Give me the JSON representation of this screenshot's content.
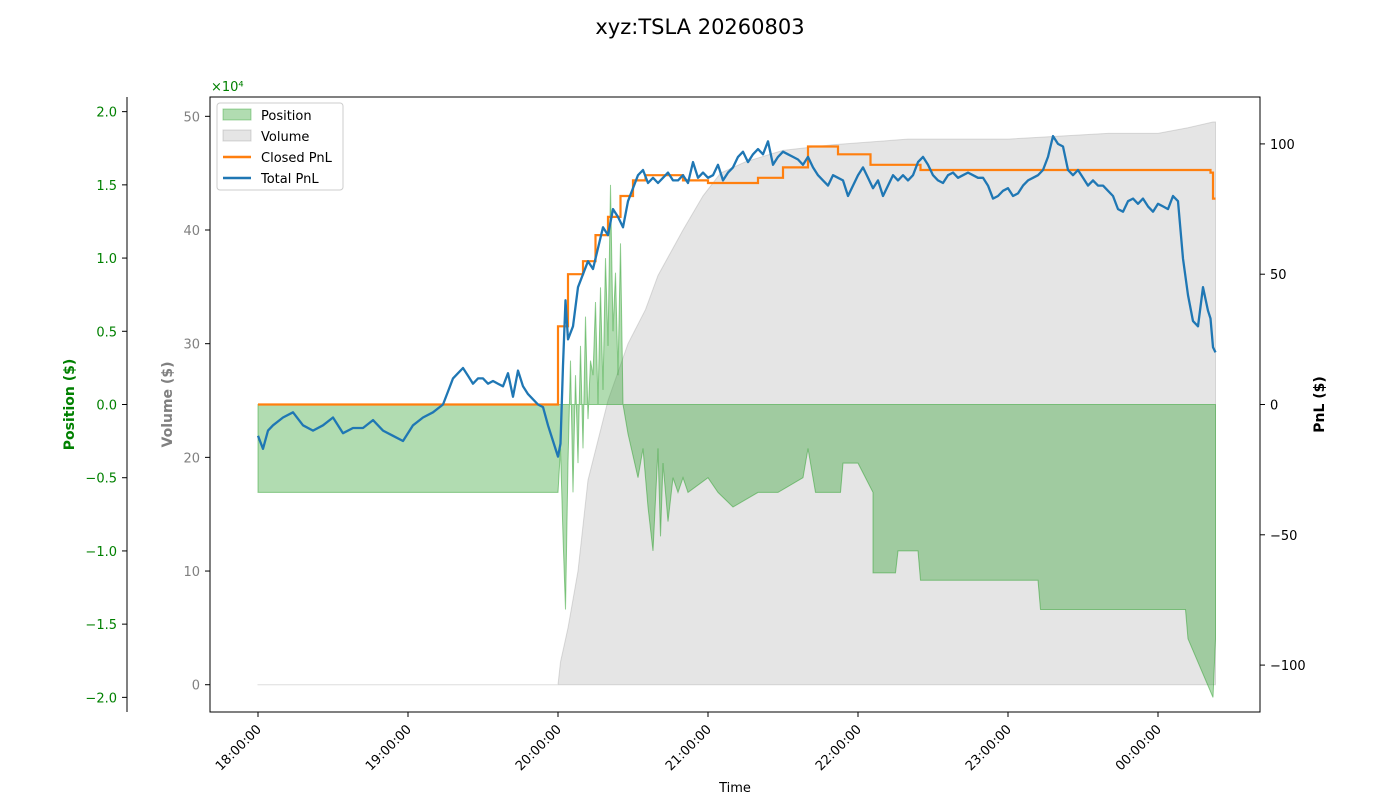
{
  "title": "xyz:TSLA 20260803",
  "colors": {
    "position": "#2ca02c",
    "volume": "#9e9e9e",
    "closed_pnl": "#ff7f0e",
    "total_pnl": "#1f77b4",
    "position_axis": "#008000",
    "volume_axis": "#808080"
  },
  "chart_data": {
    "type": "line",
    "title": "xyz:TSLA 20260803",
    "xlabel": "Time",
    "x_ticks": [
      "18:00:00",
      "19:00:00",
      "20:00:00",
      "21:00:00",
      "22:00:00",
      "23:00:00",
      "00:00:00"
    ],
    "axes": {
      "position": {
        "label": "Position ($)",
        "ylim": [
          -2.1,
          2.1
        ],
        "ticks": [
          "−2.0",
          "−1.5",
          "−1.0",
          "−0.5",
          "0.0",
          "0.5",
          "1.0",
          "1.5",
          "2.0"
        ],
        "tick_values": [
          -2.0,
          -1.5,
          -1.0,
          -0.5,
          0.0,
          0.5,
          1.0,
          1.5,
          2.0
        ],
        "multiplier": "×10⁴"
      },
      "volume": {
        "label": "Volume ($)",
        "ylim": [
          -2.4,
          51.7
        ],
        "ticks": [
          "0",
          "10",
          "20",
          "30",
          "40",
          "50"
        ],
        "tick_values": [
          0,
          10,
          20,
          30,
          40,
          50
        ]
      },
      "pnl": {
        "label": "PnL ($)",
        "ylim": [
          -118,
          118
        ],
        "ticks": [
          "−100",
          "−50",
          "0",
          "50",
          "100"
        ],
        "tick_values": [
          -100,
          -50,
          0,
          50,
          100
        ]
      }
    },
    "legend": {
      "placement": "upper-left",
      "entries": [
        "Position",
        "Volume",
        "Closed PnL",
        "Total PnL"
      ]
    },
    "series": [
      {
        "name": "Position",
        "kind": "area",
        "axis": "position",
        "points": [
          [
            0,
            -0.6
          ],
          [
            120,
            -0.6
          ],
          [
            121,
            -0.3
          ],
          [
            122,
            -0.9
          ],
          [
            123,
            -1.4
          ],
          [
            124,
            -0.4
          ],
          [
            125,
            0.3
          ],
          [
            126,
            -0.6
          ],
          [
            127,
            0.2
          ],
          [
            128,
            -0.4
          ],
          [
            129,
            0.4
          ],
          [
            130,
            -0.3
          ],
          [
            131,
            0.6
          ],
          [
            132,
            -0.1
          ],
          [
            133,
            0.3
          ],
          [
            134,
            0.2
          ],
          [
            135,
            0.7
          ],
          [
            136,
            0.0
          ],
          [
            137,
            0.8
          ],
          [
            138,
            0.1
          ],
          [
            139,
            1.0
          ],
          [
            140,
            0.4
          ],
          [
            141,
            1.5
          ],
          [
            142,
            0.5
          ],
          [
            143,
            0.9
          ],
          [
            144,
            0.2
          ],
          [
            145,
            1.1
          ],
          [
            146,
            0.0
          ],
          [
            148,
            -0.2
          ],
          [
            152,
            -0.5
          ],
          [
            154,
            -0.3
          ],
          [
            156,
            -0.7
          ],
          [
            158,
            -1.0
          ],
          [
            160,
            -0.3
          ],
          [
            161,
            -0.9
          ],
          [
            162,
            -0.4
          ],
          [
            164,
            -0.8
          ],
          [
            166,
            -0.5
          ],
          [
            168,
            -0.6
          ],
          [
            170,
            -0.5
          ],
          [
            172,
            -0.6
          ],
          [
            180,
            -0.5
          ],
          [
            184,
            -0.6
          ],
          [
            190,
            -0.7
          ],
          [
            200,
            -0.6
          ],
          [
            208,
            -0.6
          ],
          [
            218,
            -0.5
          ],
          [
            220,
            -0.3
          ],
          [
            223,
            -0.6
          ],
          [
            233,
            -0.6
          ],
          [
            234,
            -0.4
          ],
          [
            235,
            -0.4
          ],
          [
            240,
            -0.4
          ],
          [
            246,
            -0.6
          ],
          [
            246,
            -1.15
          ],
          [
            255,
            -1.15
          ],
          [
            256,
            -1.0
          ],
          [
            264,
            -1.0
          ],
          [
            265,
            -1.2
          ],
          [
            312,
            -1.2
          ],
          [
            313,
            -1.4
          ],
          [
            371,
            -1.4
          ],
          [
            372,
            -1.6
          ],
          [
            382,
            -2.0
          ],
          [
            383,
            -1.6
          ]
        ]
      },
      {
        "name": "Volume",
        "kind": "area",
        "axis": "volume",
        "points": [
          [
            0,
            0
          ],
          [
            120,
            0
          ],
          [
            121,
            2
          ],
          [
            124,
            5
          ],
          [
            128,
            10
          ],
          [
            132,
            18
          ],
          [
            140,
            25
          ],
          [
            148,
            30
          ],
          [
            155,
            33
          ],
          [
            160,
            36
          ],
          [
            165,
            38
          ],
          [
            170,
            40
          ],
          [
            178,
            43
          ],
          [
            185,
            45
          ],
          [
            195,
            46
          ],
          [
            210,
            47
          ],
          [
            230,
            47.5
          ],
          [
            260,
            48
          ],
          [
            300,
            48
          ],
          [
            340,
            48.5
          ],
          [
            360,
            48.5
          ],
          [
            372,
            49
          ],
          [
            382,
            49.5
          ],
          [
            383,
            49.5
          ]
        ]
      },
      {
        "name": "Closed PnL",
        "kind": "line",
        "axis": "pnl",
        "points": [
          [
            0,
            0
          ],
          [
            118,
            0
          ],
          [
            120,
            30
          ],
          [
            124,
            50
          ],
          [
            130,
            55
          ],
          [
            135,
            65
          ],
          [
            140,
            72
          ],
          [
            145,
            80
          ],
          [
            150,
            86
          ],
          [
            155,
            88
          ],
          [
            170,
            86
          ],
          [
            180,
            85
          ],
          [
            200,
            87
          ],
          [
            210,
            91
          ],
          [
            220,
            99
          ],
          [
            232,
            96
          ],
          [
            245,
            92
          ],
          [
            265,
            90
          ],
          [
            300,
            90
          ],
          [
            380,
            90
          ],
          [
            381,
            89
          ],
          [
            382,
            79
          ],
          [
            383,
            79
          ]
        ]
      },
      {
        "name": "Total PnL",
        "kind": "line",
        "axis": "pnl",
        "points": [
          [
            0,
            -12
          ],
          [
            2,
            -17
          ],
          [
            4,
            -10
          ],
          [
            6,
            -8
          ],
          [
            10,
            -5
          ],
          [
            14,
            -3
          ],
          [
            18,
            -8
          ],
          [
            22,
            -10
          ],
          [
            26,
            -8
          ],
          [
            30,
            -5
          ],
          [
            34,
            -11
          ],
          [
            38,
            -9
          ],
          [
            42,
            -9
          ],
          [
            46,
            -6
          ],
          [
            50,
            -10
          ],
          [
            54,
            -12
          ],
          [
            58,
            -14
          ],
          [
            62,
            -8
          ],
          [
            66,
            -5
          ],
          [
            70,
            -3
          ],
          [
            74,
            0
          ],
          [
            76,
            5
          ],
          [
            78,
            10
          ],
          [
            80,
            12
          ],
          [
            82,
            14
          ],
          [
            84,
            11
          ],
          [
            86,
            8
          ],
          [
            88,
            10
          ],
          [
            90,
            10
          ],
          [
            92,
            8
          ],
          [
            94,
            9
          ],
          [
            96,
            8
          ],
          [
            98,
            7
          ],
          [
            100,
            12
          ],
          [
            102,
            3
          ],
          [
            104,
            13
          ],
          [
            106,
            7
          ],
          [
            108,
            4
          ],
          [
            110,
            2
          ],
          [
            112,
            0
          ],
          [
            114,
            -1
          ],
          [
            116,
            -8
          ],
          [
            118,
            -14
          ],
          [
            120,
            -20
          ],
          [
            121,
            -15
          ],
          [
            122,
            15
          ],
          [
            123,
            40
          ],
          [
            124,
            25
          ],
          [
            126,
            30
          ],
          [
            128,
            45
          ],
          [
            130,
            50
          ],
          [
            132,
            55
          ],
          [
            134,
            52
          ],
          [
            136,
            60
          ],
          [
            138,
            68
          ],
          [
            140,
            65
          ],
          [
            142,
            75
          ],
          [
            144,
            72
          ],
          [
            146,
            68
          ],
          [
            148,
            78
          ],
          [
            150,
            83
          ],
          [
            152,
            88
          ],
          [
            154,
            90
          ],
          [
            156,
            85
          ],
          [
            158,
            87
          ],
          [
            160,
            85
          ],
          [
            162,
            87
          ],
          [
            164,
            89
          ],
          [
            166,
            86
          ],
          [
            168,
            86
          ],
          [
            170,
            88
          ],
          [
            172,
            85
          ],
          [
            174,
            93
          ],
          [
            176,
            87
          ],
          [
            178,
            89
          ],
          [
            180,
            87
          ],
          [
            182,
            88
          ],
          [
            184,
            92
          ],
          [
            186,
            86
          ],
          [
            188,
            89
          ],
          [
            190,
            91
          ],
          [
            192,
            95
          ],
          [
            194,
            97
          ],
          [
            196,
            93
          ],
          [
            198,
            96
          ],
          [
            200,
            98
          ],
          [
            202,
            96
          ],
          [
            204,
            101
          ],
          [
            206,
            92
          ],
          [
            208,
            95
          ],
          [
            210,
            97
          ],
          [
            212,
            96
          ],
          [
            214,
            95
          ],
          [
            216,
            94
          ],
          [
            218,
            92
          ],
          [
            220,
            95
          ],
          [
            222,
            91
          ],
          [
            224,
            88
          ],
          [
            226,
            86
          ],
          [
            228,
            84
          ],
          [
            230,
            88
          ],
          [
            232,
            87
          ],
          [
            234,
            86
          ],
          [
            236,
            80
          ],
          [
            238,
            84
          ],
          [
            240,
            88
          ],
          [
            242,
            91
          ],
          [
            244,
            87
          ],
          [
            246,
            83
          ],
          [
            248,
            86
          ],
          [
            250,
            80
          ],
          [
            252,
            84
          ],
          [
            254,
            88
          ],
          [
            256,
            86
          ],
          [
            258,
            88
          ],
          [
            260,
            86
          ],
          [
            262,
            88
          ],
          [
            264,
            93
          ],
          [
            266,
            95
          ],
          [
            268,
            92
          ],
          [
            270,
            88
          ],
          [
            272,
            86
          ],
          [
            274,
            85
          ],
          [
            276,
            88
          ],
          [
            278,
            89
          ],
          [
            280,
            87
          ],
          [
            282,
            88
          ],
          [
            284,
            89
          ],
          [
            286,
            88
          ],
          [
            288,
            87
          ],
          [
            290,
            87
          ],
          [
            292,
            84
          ],
          [
            294,
            79
          ],
          [
            296,
            80
          ],
          [
            298,
            82
          ],
          [
            300,
            83
          ],
          [
            302,
            80
          ],
          [
            304,
            81
          ],
          [
            306,
            84
          ],
          [
            308,
            86
          ],
          [
            310,
            87
          ],
          [
            312,
            88
          ],
          [
            314,
            90
          ],
          [
            316,
            95
          ],
          [
            318,
            103
          ],
          [
            320,
            100
          ],
          [
            322,
            99
          ],
          [
            324,
            90
          ],
          [
            326,
            88
          ],
          [
            328,
            90
          ],
          [
            330,
            87
          ],
          [
            332,
            84
          ],
          [
            334,
            86
          ],
          [
            336,
            84
          ],
          [
            338,
            84
          ],
          [
            340,
            82
          ],
          [
            342,
            80
          ],
          [
            344,
            75
          ],
          [
            346,
            74
          ],
          [
            348,
            78
          ],
          [
            350,
            79
          ],
          [
            352,
            77
          ],
          [
            354,
            79
          ],
          [
            356,
            76
          ],
          [
            358,
            74
          ],
          [
            360,
            77
          ],
          [
            362,
            76
          ],
          [
            364,
            75
          ],
          [
            366,
            80
          ],
          [
            368,
            78
          ],
          [
            370,
            56
          ],
          [
            372,
            42
          ],
          [
            374,
            32
          ],
          [
            376,
            30
          ],
          [
            378,
            45
          ],
          [
            380,
            36
          ],
          [
            381,
            33
          ],
          [
            382,
            22
          ],
          [
            383,
            20
          ]
        ]
      }
    ]
  }
}
